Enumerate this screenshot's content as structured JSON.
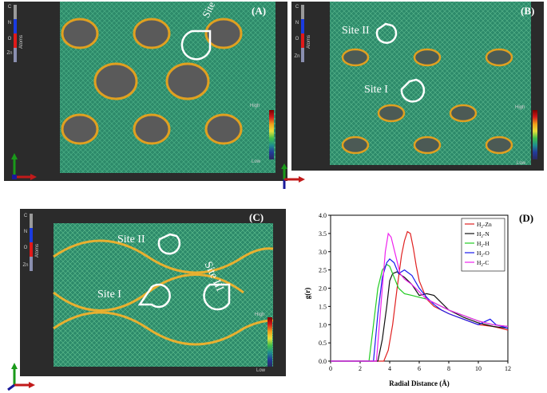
{
  "panels": [
    {
      "letter": "(A)",
      "sites": [
        "Site I"
      ],
      "scale": {
        "high": "High",
        "low": "Low"
      }
    },
    {
      "letter": "(B)",
      "sites": [
        "Site II",
        "Site I"
      ],
      "scale": {
        "high": "High",
        "low": "Low"
      }
    },
    {
      "letter": "(C)",
      "sites": [
        "Site II",
        "Site I",
        "Site III"
      ],
      "scale": {
        "high": "High",
        "low": "Low"
      }
    }
  ],
  "atom_legend": {
    "title": "Atoms",
    "labels": [
      "C",
      "N",
      "O",
      "Zn"
    ],
    "colors": [
      "#9a9a9a",
      "#1a3be0",
      "#e01a1a",
      "#8a8fb0"
    ]
  },
  "chart_letter": "(D)",
  "chart_data": {
    "type": "line",
    "xlabel": "Radial Distance (Å)",
    "ylabel": "g(r)",
    "xlim": [
      0,
      12
    ],
    "ylim": [
      0,
      4.0
    ],
    "xticks": [
      0,
      2,
      4,
      6,
      8,
      10,
      12
    ],
    "yticks": [
      0.0,
      0.5,
      1.0,
      1.5,
      2.0,
      2.5,
      3.0,
      3.5,
      4.0
    ],
    "legend": "top-right",
    "series": [
      {
        "name": "H2-Zn",
        "color": "#e02020",
        "x": [
          0,
          3.6,
          3.9,
          4.2,
          4.5,
          4.8,
          5.0,
          5.2,
          5.4,
          5.6,
          5.8,
          6.0,
          6.5,
          7.0,
          7.5,
          8.0,
          9.0,
          10.0,
          11.0,
          12.0
        ],
        "y": [
          0,
          0,
          0.3,
          1.0,
          2.0,
          2.9,
          3.3,
          3.55,
          3.5,
          3.1,
          2.6,
          2.2,
          1.7,
          1.5,
          1.4,
          1.3,
          1.15,
          1.0,
          0.95,
          0.85
        ]
      },
      {
        "name": "H2-N",
        "color": "#111111",
        "x": [
          0,
          3.2,
          3.5,
          3.8,
          4.0,
          4.2,
          4.5,
          4.8,
          5.0,
          5.5,
          6.0,
          6.5,
          7.0,
          7.5,
          8.0,
          9.0,
          10.0,
          11.0,
          12.0
        ],
        "y": [
          0,
          0,
          0.6,
          1.5,
          2.2,
          2.4,
          2.45,
          2.35,
          2.3,
          2.1,
          1.8,
          1.85,
          1.8,
          1.6,
          1.4,
          1.2,
          1.05,
          0.95,
          0.9
        ]
      },
      {
        "name": "H2-H",
        "color": "#22cc22",
        "x": [
          0,
          2.6,
          2.9,
          3.2,
          3.5,
          3.8,
          4.0,
          4.3,
          4.6,
          5.0,
          5.5,
          6.0,
          6.5,
          7.0,
          7.5,
          8.0,
          9.0,
          10.0,
          11.0,
          12.0
        ],
        "y": [
          0,
          0,
          1.0,
          2.0,
          2.5,
          2.65,
          2.6,
          2.3,
          2.0,
          1.85,
          1.8,
          1.75,
          1.7,
          1.6,
          1.5,
          1.4,
          1.25,
          1.1,
          1.0,
          0.95
        ]
      },
      {
        "name": "H2-O",
        "color": "#1a1aee",
        "x": [
          0,
          2.9,
          3.2,
          3.5,
          3.8,
          4.0,
          4.3,
          4.6,
          5.0,
          5.5,
          6.0,
          6.5,
          7.0,
          7.5,
          8.0,
          9.0,
          10.0,
          10.8,
          11.2,
          12.0
        ],
        "y": [
          0,
          0,
          1.3,
          2.3,
          2.7,
          2.8,
          2.7,
          2.4,
          2.5,
          2.35,
          2.0,
          1.75,
          1.55,
          1.4,
          1.3,
          1.15,
          1.0,
          1.15,
          1.0,
          0.9
        ]
      },
      {
        "name": "H2-C",
        "color": "#ee22ee",
        "x": [
          0,
          3.1,
          3.4,
          3.7,
          3.9,
          4.1,
          4.4,
          4.7,
          5.0,
          5.5,
          6.0,
          6.5,
          7.0,
          7.5,
          8.0,
          9.0,
          10.0,
          11.0,
          12.0
        ],
        "y": [
          0,
          0,
          1.5,
          3.0,
          3.5,
          3.4,
          2.9,
          2.4,
          2.25,
          2.1,
          1.9,
          1.7,
          1.6,
          1.5,
          1.4,
          1.25,
          1.1,
          1.0,
          0.95
        ]
      }
    ]
  }
}
